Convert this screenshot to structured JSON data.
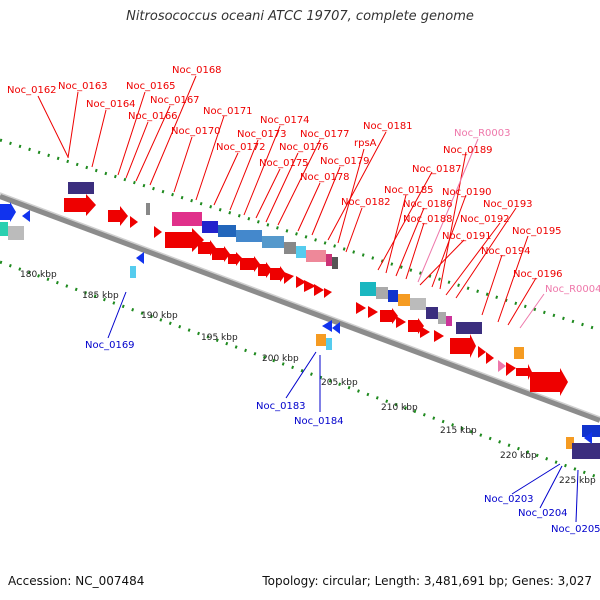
{
  "title": "Nitrosococcus oceani ATCC 19707, complete genome",
  "footer": {
    "accession": "Accession: NC_007484",
    "summary": "Topology: circular; Length: 3,481,691 bp; Genes: 3,027"
  },
  "colors": {
    "backbone": "#909090",
    "ticks": "#1f8a1f",
    "red": "#ee0000",
    "pink": "#ee77aa",
    "blue": "#0000cc"
  },
  "kbp_labels": [
    {
      "label": "180 kbp",
      "kbp": 180
    },
    {
      "label": "185 kbp",
      "kbp": 185
    },
    {
      "label": "190 kbp",
      "kbp": 190
    },
    {
      "label": "195 kbp",
      "kbp": 195
    },
    {
      "label": "200 kbp",
      "kbp": 200
    },
    {
      "label": "205 kbp",
      "kbp": 205
    },
    {
      "label": "210 kbp",
      "kbp": 210
    },
    {
      "label": "215 kbp",
      "kbp": 215
    },
    {
      "label": "220 kbp",
      "kbp": 220
    },
    {
      "label": "225 kbp",
      "kbp": 225
    }
  ],
  "top_gene_labels": [
    {
      "text": "Noc_0162",
      "color": "red"
    },
    {
      "text": "Noc_0163",
      "color": "red"
    },
    {
      "text": "Noc_0164",
      "color": "red"
    },
    {
      "text": "Noc_0165",
      "color": "red"
    },
    {
      "text": "Noc_0166",
      "color": "red"
    },
    {
      "text": "Noc_0167",
      "color": "red"
    },
    {
      "text": "Noc_0168",
      "color": "red"
    },
    {
      "text": "Noc_0170",
      "color": "red"
    },
    {
      "text": "Noc_0171",
      "color": "red"
    },
    {
      "text": "Noc_0172",
      "color": "red"
    },
    {
      "text": "Noc_0173",
      "color": "red"
    },
    {
      "text": "Noc_0174",
      "color": "red"
    },
    {
      "text": "Noc_0175",
      "color": "red"
    },
    {
      "text": "Noc_0176",
      "color": "red"
    },
    {
      "text": "Noc_0177",
      "color": "red"
    },
    {
      "text": "Noc_0178",
      "color": "red"
    },
    {
      "text": "Noc_0179",
      "color": "red"
    },
    {
      "text": "Noc_0181",
      "color": "red"
    },
    {
      "text": "rpsA",
      "color": "red"
    },
    {
      "text": "Noc_0182",
      "color": "red"
    },
    {
      "text": "Noc_R0003",
      "color": "pink"
    },
    {
      "text": "Noc_0189",
      "color": "red"
    },
    {
      "text": "Noc_0187",
      "color": "red"
    },
    {
      "text": "Noc_0185",
      "color": "red"
    },
    {
      "text": "Noc_0186",
      "color": "red"
    },
    {
      "text": "Noc_0190",
      "color": "red"
    },
    {
      "text": "Noc_0188",
      "color": "red"
    },
    {
      "text": "Noc_0193",
      "color": "red"
    },
    {
      "text": "Noc_0192",
      "color": "red"
    },
    {
      "text": "Noc_0191",
      "color": "red"
    },
    {
      "text": "Noc_0195",
      "color": "red"
    },
    {
      "text": "Noc_0194",
      "color": "red"
    },
    {
      "text": "Noc_0196",
      "color": "red"
    },
    {
      "text": "Noc_R0004",
      "color": "pink"
    }
  ],
  "bottom_gene_labels": [
    {
      "text": "Noc_0169",
      "color": "blue"
    },
    {
      "text": "Noc_0183",
      "color": "blue"
    },
    {
      "text": "Noc_0184",
      "color": "blue"
    },
    {
      "text": "Noc_0203",
      "color": "blue"
    },
    {
      "text": "Noc_0204",
      "color": "blue"
    },
    {
      "text": "Noc_0205",
      "color": "blue"
    }
  ]
}
